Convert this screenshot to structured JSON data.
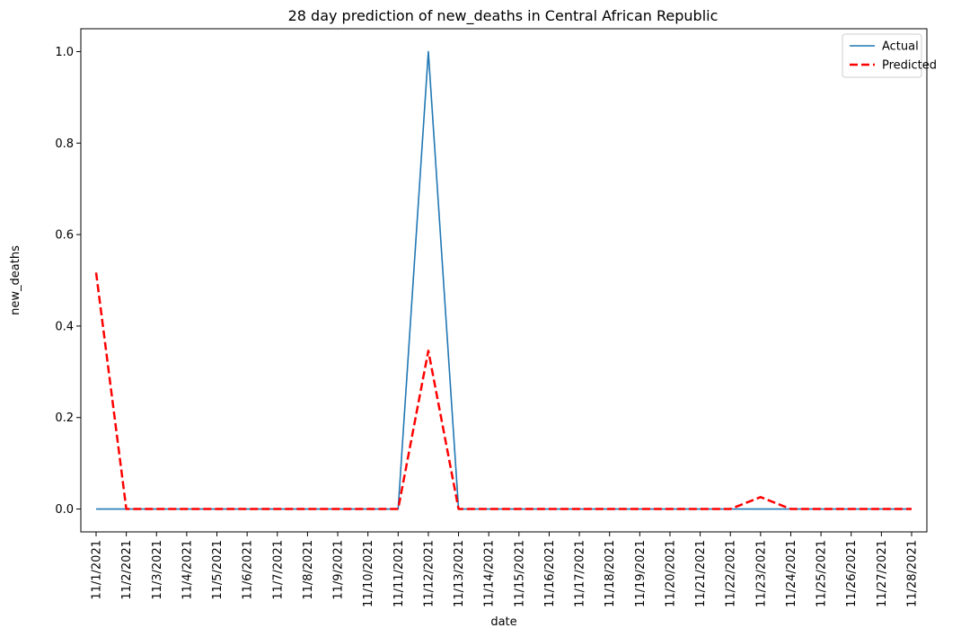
{
  "chart_data": {
    "type": "line",
    "title": "28 day prediction of new_deaths in Central African Republic",
    "xlabel": "date",
    "ylabel": "new_deaths",
    "x": [
      "11/1/2021",
      "11/2/2021",
      "11/3/2021",
      "11/4/2021",
      "11/5/2021",
      "11/6/2021",
      "11/7/2021",
      "11/8/2021",
      "11/9/2021",
      "11/10/2021",
      "11/11/2021",
      "11/12/2021",
      "11/13/2021",
      "11/14/2021",
      "11/15/2021",
      "11/16/2021",
      "11/17/2021",
      "11/18/2021",
      "11/19/2021",
      "11/20/2021",
      "11/21/2021",
      "11/22/2021",
      "11/23/2021",
      "11/24/2021",
      "11/25/2021",
      "11/26/2021",
      "11/27/2021",
      "11/28/2021"
    ],
    "ylim": [
      -0.05,
      1.05
    ],
    "yticks": [
      0.0,
      0.2,
      0.4,
      0.6,
      0.8,
      1.0
    ],
    "ytick_labels": [
      "0.0",
      "0.2",
      "0.4",
      "0.6",
      "0.8",
      "1.0"
    ],
    "grid": false,
    "legend_position": "top-right",
    "series": [
      {
        "name": "Actual",
        "color": "#1f77b4",
        "style": "solid",
        "values": [
          0,
          0,
          0,
          0,
          0,
          0,
          0,
          0,
          0,
          0,
          0,
          1.0,
          0,
          0,
          0,
          0,
          0,
          0,
          0,
          0,
          0,
          0,
          0,
          0,
          0,
          0,
          0,
          0
        ]
      },
      {
        "name": "Predicted",
        "color": "#ff0000",
        "style": "dashed",
        "values": [
          0.517,
          0,
          0,
          0,
          0,
          0,
          0,
          0,
          0,
          0,
          0,
          0.346,
          0,
          0,
          0,
          0,
          0,
          0,
          0,
          0,
          0,
          0,
          0.026,
          0,
          0,
          0,
          0,
          0
        ]
      }
    ]
  }
}
